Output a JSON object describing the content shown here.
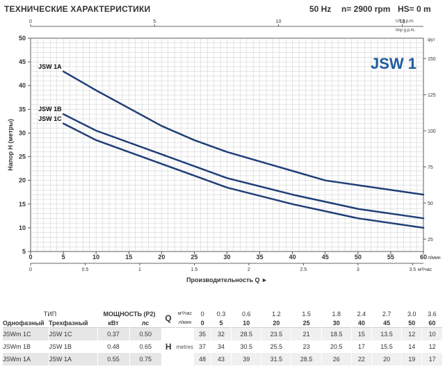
{
  "header": {
    "title": "ТЕХНИЧЕСКИЕ ХАРАКТЕРИСТИКИ",
    "freq": "50 Hz",
    "speed": "n= 2900 rpm",
    "hs": "HS= 0 m"
  },
  "chart_data": {
    "type": "line",
    "title": "JSW 1",
    "ylabel": "Напор H (метры)",
    "xlabel": "Производительность Q ►",
    "x_unit": "л/мин",
    "x2_unit": "м³/час",
    "top_unit_1": "US g.p.m.",
    "top_unit_2": "Imp g.p.m.",
    "right_unit": "фут",
    "xlim": [
      0,
      60
    ],
    "ylim": [
      5,
      50
    ],
    "x_ticks": [
      0,
      5,
      10,
      15,
      20,
      25,
      30,
      35,
      40,
      45,
      50,
      55,
      60
    ],
    "y_ticks": [
      5,
      10,
      15,
      20,
      25,
      30,
      35,
      40,
      45,
      50
    ],
    "x2_ticks": [
      "0",
      "0.5",
      "1",
      "1.5",
      "2",
      "2.5",
      "3",
      "3.5"
    ],
    "x2_values": [
      0,
      0.5,
      1,
      1.5,
      2,
      2.5,
      3,
      3.5
    ],
    "top_ticks": [
      "0",
      "5",
      "10",
      "15"
    ],
    "top_values": [
      0,
      5,
      10,
      15
    ],
    "right_ticks": [
      "25",
      "50",
      "75",
      "100",
      "125",
      "150"
    ],
    "right_values": [
      25,
      50,
      75,
      100,
      125,
      150
    ],
    "grid": true,
    "series": [
      {
        "name": "JSW 1A",
        "x": [
          5,
          10,
          20,
          25,
          30,
          40,
          45,
          50,
          60
        ],
        "y": [
          43,
          39,
          31.5,
          28.5,
          26,
          22,
          20,
          19,
          17
        ]
      },
      {
        "name": "JSW 1B",
        "x": [
          5,
          10,
          20,
          25,
          30,
          40,
          45,
          50,
          60
        ],
        "y": [
          34,
          30.5,
          25.5,
          23,
          20.5,
          17,
          15.5,
          14,
          12
        ]
      },
      {
        "name": "JSW 1C",
        "x": [
          5,
          10,
          20,
          25,
          30,
          40,
          45,
          50,
          60
        ],
        "y": [
          32,
          28.5,
          23.5,
          21,
          18.5,
          15,
          13.5,
          12,
          10
        ]
      }
    ],
    "colors": {
      "curve": "#1f3f77",
      "title": "#1f5a9e",
      "grid": "#bdbdbd"
    }
  },
  "table": {
    "head_type": "ТИП",
    "head_power": "МОЩНОСТЬ (P2)",
    "single_phase": "Однофазный",
    "three_phase": "Трехфазный",
    "kw": "кВт",
    "hp": "лс",
    "q_label": "Q",
    "unit_m3h": "м³/час",
    "unit_lmin": "л/мин",
    "h_label": "H",
    "h_unit": "metres",
    "q_m3h": [
      "0",
      "0.3",
      "0.6",
      "1.2",
      "1.5",
      "1.8",
      "2.4",
      "2.7",
      "3.0",
      "3.6"
    ],
    "q_lmin": [
      "0",
      "5",
      "10",
      "20",
      "25",
      "30",
      "40",
      "45",
      "50",
      "60"
    ],
    "rows": [
      {
        "single": "JSWm 1C",
        "three": "JSW 1C",
        "kw": "0.37",
        "hp": "0.50",
        "h": [
          "35",
          "32",
          "28.5",
          "23.5",
          "21",
          "18.5",
          "15",
          "13.5",
          "12",
          "10"
        ]
      },
      {
        "single": "JSWm 1B",
        "three": "JSW 1B",
        "kw": "0.48",
        "hp": "0.65",
        "h": [
          "37",
          "34",
          "30.5",
          "25.5",
          "23",
          "20.5",
          "17",
          "15.5",
          "14",
          "12"
        ]
      },
      {
        "single": "JSWm 1A",
        "three": "JSW 1A",
        "kw": "0.55",
        "hp": "0.75",
        "h": [
          "48",
          "43",
          "39",
          "31.5",
          "28.5",
          "26",
          "22",
          "20",
          "19",
          "17"
        ]
      }
    ]
  }
}
